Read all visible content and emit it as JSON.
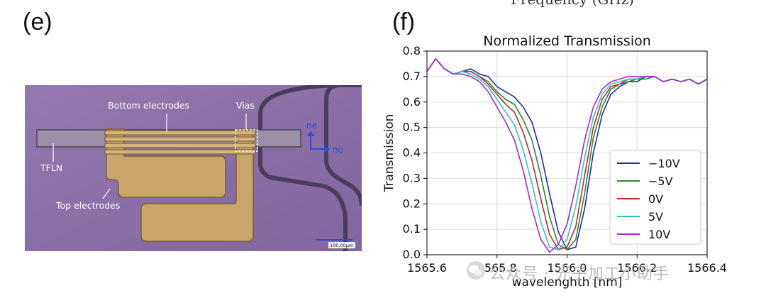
{
  "header": {
    "top_cut_text": "Frequency (GHz)"
  },
  "panel_e": {
    "label": "(e)",
    "annotations": {
      "bottom_electrodes": "Bottom electrodes",
      "vias": "Vias",
      "tfln": "TFLN",
      "top_electrodes": "Top electrodes",
      "axis_ne": "ne",
      "axis_no": "no",
      "scale_bar": "100.00µm"
    },
    "colors": {
      "substrate": "#8a6fa6",
      "electrode": "#c9a56a",
      "waveguide": "#9b8fa8",
      "axis": "#2a4bdc"
    }
  },
  "panel_f": {
    "label": "(f)"
  },
  "watermark": {
    "text": "公众号 · 光子加工小助手",
    "icon": "wechat-icon"
  },
  "chart_data": {
    "type": "line",
    "title": "Normalized Transmission",
    "xlabel": "wavelenghth [nm]",
    "ylabel": "Transmission",
    "xlim": [
      1565.6,
      1566.4
    ],
    "ylim": [
      0.0,
      0.8
    ],
    "xticks": [
      1565.6,
      1565.8,
      1566.0,
      1566.2,
      1566.4
    ],
    "xtick_labels": [
      "1565.6",
      "1565.8",
      "1566.0",
      "1566.2",
      "1566.4"
    ],
    "yticks": [
      0.0,
      0.1,
      0.2,
      0.3,
      0.4,
      0.5,
      0.6,
      0.7,
      0.8
    ],
    "ytick_labels": [
      "0.0",
      "0.1",
      "0.2",
      "0.3",
      "0.4",
      "0.5",
      "0.6",
      "0.7",
      "0.8"
    ],
    "grid": true,
    "legend_position": "center-right",
    "x": [
      1565.6,
      1565.625,
      1565.65,
      1565.675,
      1565.7,
      1565.725,
      1565.75,
      1565.775,
      1565.8,
      1565.825,
      1565.85,
      1565.875,
      1565.9,
      1565.925,
      1565.95,
      1565.975,
      1566.0,
      1566.025,
      1566.05,
      1566.075,
      1566.1,
      1566.125,
      1566.15,
      1566.175,
      1566.2,
      1566.225,
      1566.25,
      1566.275,
      1566.3,
      1566.325,
      1566.35,
      1566.375,
      1566.4
    ],
    "series": [
      {
        "name": "−10V",
        "color": "#1f2bb4",
        "values": [
          0.72,
          0.77,
          0.73,
          0.71,
          0.72,
          0.73,
          0.71,
          0.7,
          0.66,
          0.64,
          0.62,
          0.58,
          0.52,
          0.4,
          0.24,
          0.09,
          0.02,
          0.03,
          0.18,
          0.4,
          0.55,
          0.63,
          0.66,
          0.68,
          0.68,
          0.7,
          0.7,
          0.68,
          0.69,
          0.68,
          0.69,
          0.67,
          0.69
        ]
      },
      {
        "name": "−5V",
        "color": "#1f8f2f",
        "values": [
          0.72,
          0.77,
          0.73,
          0.71,
          0.72,
          0.72,
          0.7,
          0.68,
          0.64,
          0.61,
          0.59,
          0.53,
          0.45,
          0.31,
          0.15,
          0.04,
          0.02,
          0.06,
          0.24,
          0.46,
          0.58,
          0.65,
          0.67,
          0.68,
          0.69,
          0.69,
          0.7,
          0.68,
          0.69,
          0.68,
          0.69,
          0.67,
          0.69
        ]
      },
      {
        "name": "0V",
        "color": "#c0282a",
        "values": [
          0.72,
          0.77,
          0.73,
          0.71,
          0.72,
          0.72,
          0.7,
          0.67,
          0.63,
          0.59,
          0.56,
          0.48,
          0.37,
          0.22,
          0.08,
          0.02,
          0.03,
          0.11,
          0.31,
          0.5,
          0.61,
          0.66,
          0.67,
          0.69,
          0.69,
          0.7,
          0.7,
          0.68,
          0.69,
          0.68,
          0.69,
          0.67,
          0.69
        ]
      },
      {
        "name": "5V",
        "color": "#2fc4c4",
        "values": [
          0.72,
          0.77,
          0.73,
          0.71,
          0.72,
          0.71,
          0.69,
          0.66,
          0.61,
          0.56,
          0.51,
          0.41,
          0.28,
          0.13,
          0.03,
          0.02,
          0.06,
          0.19,
          0.38,
          0.54,
          0.63,
          0.67,
          0.68,
          0.69,
          0.69,
          0.7,
          0.7,
          0.68,
          0.69,
          0.68,
          0.69,
          0.67,
          0.69
        ]
      },
      {
        "name": "10V",
        "color": "#a428c8",
        "values": [
          0.72,
          0.77,
          0.73,
          0.71,
          0.71,
          0.7,
          0.68,
          0.64,
          0.58,
          0.52,
          0.45,
          0.33,
          0.18,
          0.06,
          0.01,
          0.04,
          0.12,
          0.27,
          0.45,
          0.58,
          0.65,
          0.68,
          0.69,
          0.7,
          0.7,
          0.7,
          0.7,
          0.68,
          0.69,
          0.68,
          0.69,
          0.67,
          0.69
        ]
      }
    ]
  }
}
